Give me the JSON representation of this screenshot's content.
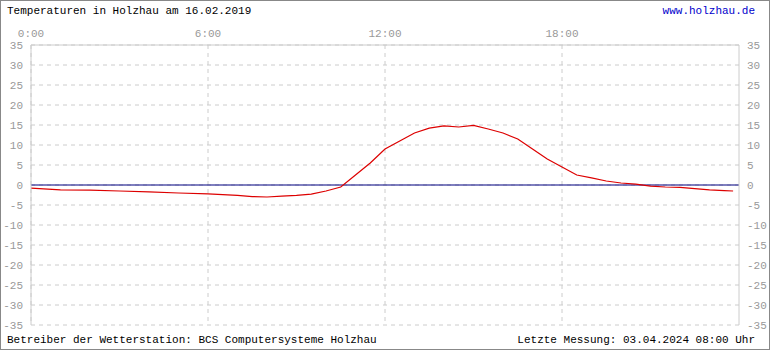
{
  "chart_data": {
    "type": "line",
    "title": "Temperaturen in Holzhau am 16.02.2019",
    "url": "www.holzhau.de",
    "operator": "Betreiber der Wetterstation: BCS Computersysteme Holzhau",
    "last_measurement": "Letzte Messung: 03.04.2024 08:00 Uhr",
    "x": [
      0,
      1,
      2,
      3,
      4,
      5,
      6,
      7,
      7.5,
      8,
      8.5,
      9,
      9.5,
      10,
      10.5,
      11,
      11.5,
      12,
      12.5,
      13,
      13.5,
      14,
      14.5,
      15,
      15.5,
      16,
      16.5,
      17,
      17.5,
      18,
      18.5,
      19,
      19.5,
      20,
      20.5,
      21,
      21.5,
      22,
      22.5,
      23,
      23.5,
      23.8
    ],
    "values": [
      -0.8,
      -1.2,
      -1.3,
      -1.5,
      -1.7,
      -2.0,
      -2.2,
      -2.6,
      -2.9,
      -3.0,
      -2.8,
      -2.6,
      -2.3,
      -1.5,
      -0.5,
      2.5,
      5.5,
      9,
      11,
      13,
      14.2,
      14.8,
      14.5,
      14.9,
      14,
      13,
      11.5,
      9,
      6.5,
      4.5,
      2.5,
      1.8,
      1.0,
      0.5,
      0.2,
      -0.3,
      -0.5,
      -0.6,
      -0.9,
      -1.2,
      -1.4,
      -1.5
    ],
    "color": "#dd0000",
    "xlim": [
      0,
      24
    ],
    "xticks": [
      {
        "value": 0,
        "label": "0:00"
      },
      {
        "value": 6,
        "label": "6:00"
      },
      {
        "value": 12,
        "label": "12:00"
      },
      {
        "value": 18,
        "label": "18:00"
      }
    ],
    "ylim": [
      -35,
      35
    ],
    "yticks": [
      -35,
      -30,
      -25,
      -20,
      -15,
      -10,
      -5,
      0,
      5,
      10,
      15,
      20,
      25,
      30,
      35
    ],
    "grid": true,
    "reference_lines": [
      {
        "y": 0,
        "color": "#000080"
      }
    ]
  }
}
